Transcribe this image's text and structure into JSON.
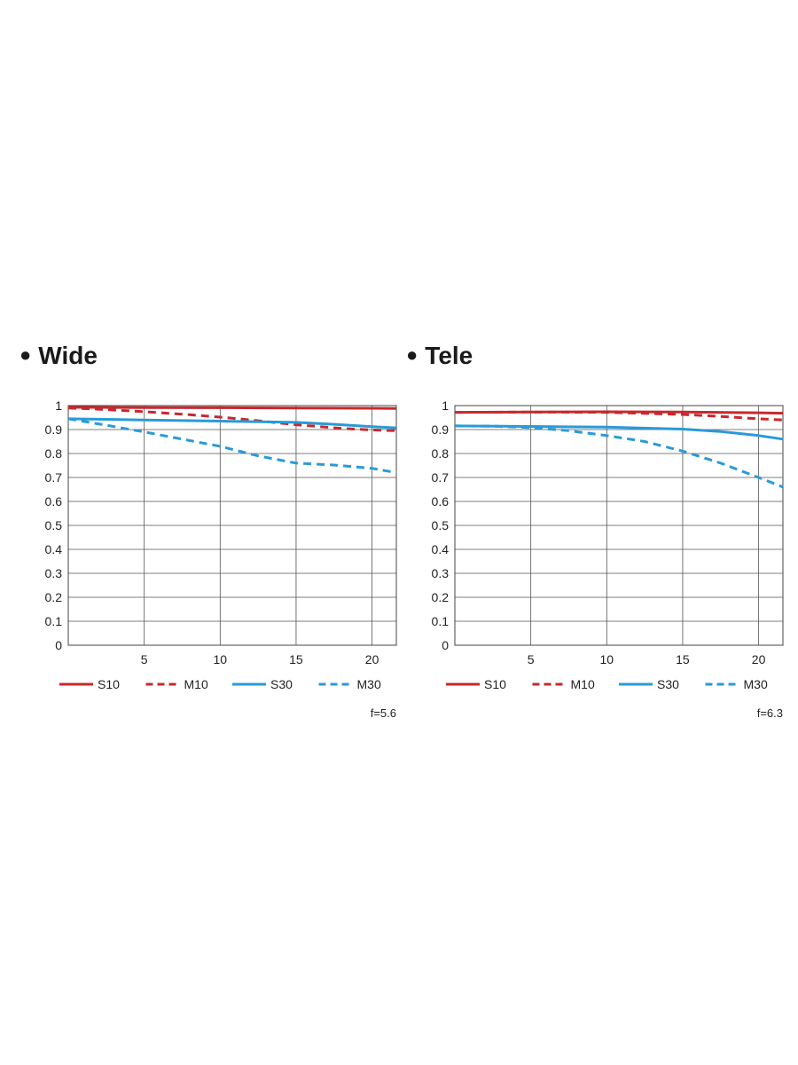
{
  "chart_data": [
    {
      "type": "line",
      "title": "Wide",
      "f_label": "f=5.6",
      "xticks": [
        5,
        10,
        15,
        20
      ],
      "yticks": [
        "0",
        "0.1",
        "0.2",
        "0.3",
        "0.4",
        "0.5",
        "0.6",
        "0.7",
        "0.8",
        "0.9",
        "1"
      ],
      "xlim": [
        0,
        21.6
      ],
      "ylim": [
        0,
        1
      ],
      "grid": true,
      "legend_position": "bottom",
      "series": [
        {
          "name": "S10",
          "color": "#c8282d",
          "dash": false,
          "x": [
            0,
            5,
            10,
            15,
            20,
            21.6
          ],
          "y": [
            0.993,
            0.992,
            0.991,
            0.99,
            0.989,
            0.988
          ]
        },
        {
          "name": "M10",
          "color": "#c8282d",
          "dash": true,
          "x": [
            0,
            2,
            5,
            8,
            10,
            12,
            15,
            18,
            20,
            21.6
          ],
          "y": [
            0.99,
            0.985,
            0.975,
            0.962,
            0.952,
            0.94,
            0.92,
            0.905,
            0.898,
            0.895
          ]
        },
        {
          "name": "S30",
          "color": "#2a9ad8",
          "dash": false,
          "x": [
            0,
            5,
            10,
            15,
            18,
            20,
            21.6
          ],
          "y": [
            0.945,
            0.94,
            0.935,
            0.93,
            0.92,
            0.912,
            0.907
          ]
        },
        {
          "name": "M30",
          "color": "#2a9ad8",
          "dash": true,
          "x": [
            0,
            2.5,
            5,
            7.5,
            10,
            12.5,
            15,
            17.5,
            20,
            21.6
          ],
          "y": [
            0.945,
            0.918,
            0.89,
            0.86,
            0.83,
            0.79,
            0.76,
            0.752,
            0.738,
            0.72
          ]
        }
      ]
    },
    {
      "type": "line",
      "title": "Tele",
      "f_label": "f=6.3",
      "xticks": [
        5,
        10,
        15,
        20
      ],
      "yticks": [
        "0",
        "0.1",
        "0.2",
        "0.3",
        "0.4",
        "0.5",
        "0.6",
        "0.7",
        "0.8",
        "0.9",
        "1"
      ],
      "xlim": [
        0,
        21.6
      ],
      "ylim": [
        0,
        1
      ],
      "grid": true,
      "legend_position": "bottom",
      "series": [
        {
          "name": "S10",
          "color": "#c8282d",
          "dash": false,
          "x": [
            0,
            5,
            10,
            15,
            20,
            21.6
          ],
          "y": [
            0.972,
            0.973,
            0.974,
            0.973,
            0.97,
            0.968
          ]
        },
        {
          "name": "M10",
          "color": "#c8282d",
          "dash": true,
          "x": [
            0,
            5,
            10,
            15,
            17.5,
            20,
            21.6
          ],
          "y": [
            0.972,
            0.973,
            0.972,
            0.963,
            0.955,
            0.945,
            0.94
          ]
        },
        {
          "name": "S30",
          "color": "#2a9ad8",
          "dash": false,
          "x": [
            0,
            5,
            10,
            15,
            17.5,
            20,
            21.6
          ],
          "y": [
            0.915,
            0.913,
            0.91,
            0.902,
            0.892,
            0.875,
            0.86
          ]
        },
        {
          "name": "M30",
          "color": "#2a9ad8",
          "dash": true,
          "x": [
            0,
            2.5,
            5,
            7.5,
            10,
            12.5,
            15,
            17.5,
            20,
            21.6
          ],
          "y": [
            0.915,
            0.914,
            0.908,
            0.895,
            0.875,
            0.85,
            0.81,
            0.76,
            0.7,
            0.66
          ]
        }
      ]
    }
  ]
}
